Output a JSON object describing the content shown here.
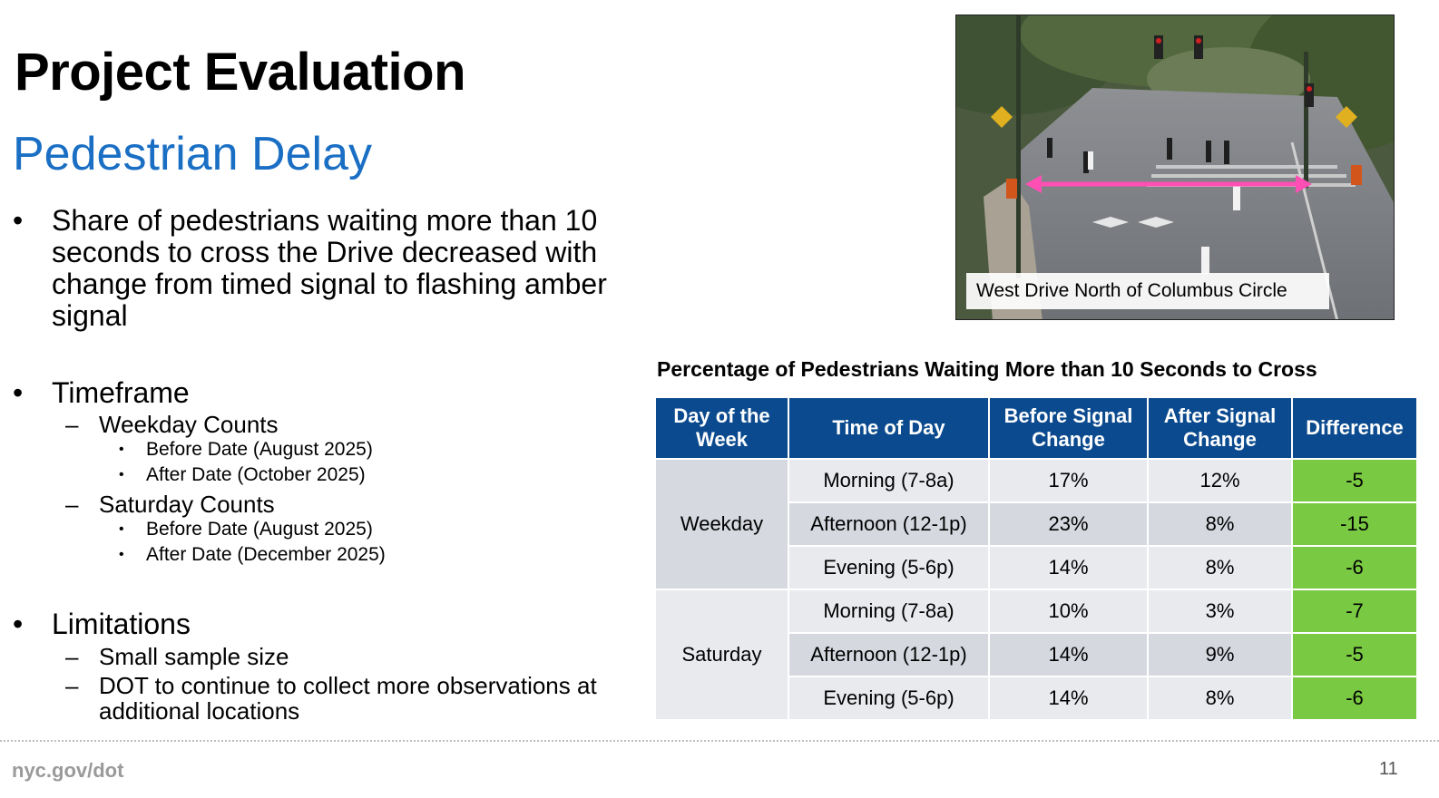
{
  "slide": {
    "title": "Project Evaluation",
    "subtitle": "Pedestrian Delay",
    "bullet_char": "•",
    "dash_char": "–",
    "bullets": {
      "share": "Share of pedestrians waiting more than 10 seconds to cross the Drive decreased with change from timed signal to flashing amber signal",
      "timeframe": {
        "label": "Timeframe",
        "weekday": {
          "label": "Weekday Counts",
          "items": [
            "Before Date (August 2025)",
            "After Date (October 2025)"
          ]
        },
        "saturday": {
          "label": "Saturday Counts",
          "items": [
            "Before Date (August 2025)",
            "After Date (December 2025)"
          ]
        }
      },
      "limitations": {
        "label": "Limitations",
        "items": [
          "Small sample size",
          "DOT to continue to collect more observations at additional locations"
        ]
      }
    }
  },
  "photo": {
    "caption": "West Drive North of Columbus Circle"
  },
  "table": {
    "title": "Percentage of Pedestrians Waiting More than 10 Seconds to Cross",
    "headers": [
      "Day of the Week",
      "Time of Day",
      "Before Signal Change",
      "After Signal Change",
      "Difference"
    ],
    "groups": [
      {
        "day": "Weekday",
        "rows": [
          {
            "time": "Morning (7-8a)",
            "before": "17%",
            "after": "12%",
            "diff": "-5"
          },
          {
            "time": "Afternoon (12-1p)",
            "before": "23%",
            "after": "8%",
            "diff": "-15"
          },
          {
            "time": "Evening (5-6p)",
            "before": "14%",
            "after": "8%",
            "diff": "-6"
          }
        ]
      },
      {
        "day": "Saturday",
        "rows": [
          {
            "time": "Morning (7-8a)",
            "before": "10%",
            "after": "3%",
            "diff": "-7"
          },
          {
            "time": "Afternoon (12-1p)",
            "before": "14%",
            "after": "9%",
            "diff": "-5"
          },
          {
            "time": "Evening (5-6p)",
            "before": "14%",
            "after": "8%",
            "diff": "-6"
          }
        ]
      }
    ],
    "colors": {
      "header": "#0b4a8e",
      "difference": "#7ac943"
    }
  },
  "footer": {
    "site": "nyc.gov/dot",
    "page_number": "11"
  }
}
